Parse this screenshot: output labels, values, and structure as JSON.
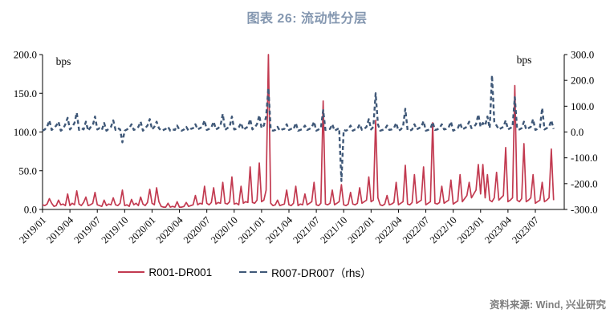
{
  "title": "图表 26: 流动性分层",
  "source": "资料来源: Wind, 兴业研究",
  "colors": {
    "title": "#8497B0",
    "r001_line": "#C23A50",
    "r007_line": "#3F5878",
    "axis": "#000000",
    "source_text": "#7F7F7F"
  },
  "legend": {
    "items": [
      {
        "label": "R001-DR001",
        "style": "solid"
      },
      {
        "label": "R007-DR007（rhs）",
        "style": "dashed"
      }
    ]
  },
  "chart_data": {
    "type": "line",
    "title": "图表 26: 流动性分层",
    "unit_label_left": "bps",
    "unit_label_right": "bps",
    "grid": false,
    "legend_position": "bottom",
    "x_start_month": "2019-01",
    "x_end_month": "2023-09",
    "points_per_month": 4,
    "x_tick_labels": [
      "2019/01",
      "2019/04",
      "2019/07",
      "2019/10",
      "2020/01",
      "2020/04",
      "2020/07",
      "2020/10",
      "2021/01",
      "2021/04",
      "2021/07",
      "2021/10",
      "2022/01",
      "2022/04",
      "2022/07",
      "2022/10",
      "2023/01",
      "2023/04",
      "2023/07"
    ],
    "left_axis": {
      "min": 0,
      "max": 200,
      "tick_labels": [
        "0.0",
        "50.0",
        "100.0",
        "150.0",
        "200.0"
      ],
      "tick_values": [
        0,
        50,
        100,
        150,
        200
      ]
    },
    "right_axis": {
      "min": -300,
      "max": 300,
      "tick_labels": [
        "-300.0",
        "-200.0",
        "-100.0",
        "0.0",
        "100.0",
        "200.0",
        "300.0"
      ],
      "tick_values": [
        -300,
        -200,
        -100,
        0,
        100,
        200,
        300
      ]
    },
    "series": [
      {
        "name": "R001-DR001",
        "axis": "left",
        "line": "solid",
        "color_key": "r001_line",
        "values": [
          6,
          5,
          7,
          14,
          8,
          4,
          5,
          12,
          6,
          7,
          5,
          20,
          5,
          8,
          6,
          24,
          7,
          5,
          9,
          16,
          5,
          6,
          8,
          22,
          6,
          5,
          4,
          12,
          5,
          7,
          6,
          15,
          6,
          5,
          8,
          25,
          5,
          6,
          4,
          13,
          6,
          8,
          5,
          16,
          7,
          5,
          9,
          26,
          8,
          6,
          28,
          10,
          4,
          3,
          3,
          8,
          3,
          4,
          3,
          10,
          3,
          3,
          4,
          9,
          4,
          5,
          6,
          18,
          6,
          8,
          7,
          30,
          8,
          6,
          9,
          28,
          7,
          9,
          8,
          35,
          8,
          7,
          10,
          42,
          7,
          8,
          6,
          30,
          8,
          10,
          9,
          55,
          9,
          8,
          12,
          60,
          10,
          12,
          25,
          200,
          8,
          5,
          6,
          12,
          5,
          6,
          7,
          25,
          6,
          5,
          8,
          30,
          5,
          7,
          6,
          20,
          6,
          8,
          10,
          35,
          6,
          5,
          8,
          140,
          7,
          6,
          8,
          25,
          6,
          8,
          10,
          32,
          6,
          5,
          7,
          22,
          7,
          6,
          8,
          28,
          8,
          10,
          12,
          42,
          10,
          12,
          115,
          15,
          6,
          5,
          7,
          18,
          6,
          7,
          9,
          35,
          6,
          8,
          10,
          57,
          7,
          6,
          9,
          45,
          8,
          10,
          12,
          55,
          6,
          8,
          10,
          112,
          8,
          7,
          9,
          30,
          8,
          10,
          12,
          38,
          7,
          9,
          11,
          45,
          10,
          14,
          18,
          35,
          15,
          20,
          25,
          58,
          20,
          58,
          15,
          45,
          12,
          10,
          15,
          48,
          12,
          15,
          18,
          80,
          10,
          12,
          15,
          160,
          12,
          10,
          14,
          85,
          10,
          12,
          15,
          45,
          8,
          10,
          12,
          35,
          10,
          12,
          15,
          78,
          12
        ]
      },
      {
        "name": "R007-DR007（rhs）",
        "axis": "right",
        "line": "dashed",
        "color_key": "r007_line",
        "values": [
          5,
          10,
          20,
          45,
          8,
          15,
          25,
          40,
          5,
          12,
          30,
          55,
          10,
          20,
          35,
          75,
          8,
          15,
          10,
          40,
          5,
          18,
          25,
          60,
          10,
          15,
          8,
          35,
          5,
          12,
          20,
          45,
          8,
          15,
          10,
          -40,
          5,
          10,
          15,
          30,
          8,
          12,
          20,
          40,
          5,
          15,
          25,
          50,
          10,
          20,
          40,
          15,
          5,
          8,
          12,
          20,
          5,
          10,
          8,
          25,
          8,
          5,
          10,
          20,
          5,
          12,
          15,
          30,
          10,
          15,
          20,
          45,
          8,
          12,
          18,
          40,
          10,
          15,
          25,
          70,
          8,
          15,
          20,
          60,
          10,
          12,
          18,
          35,
          8,
          15,
          20,
          50,
          10,
          18,
          30,
          65,
          15,
          25,
          60,
          170,
          10,
          5,
          8,
          20,
          5,
          10,
          12,
          30,
          8,
          12,
          10,
          35,
          5,
          8,
          12,
          25,
          8,
          12,
          18,
          40,
          5,
          10,
          15,
          85,
          8,
          10,
          12,
          30,
          5,
          10,
          15,
          -190,
          8,
          5,
          10,
          25,
          5,
          10,
          12,
          30,
          8,
          12,
          20,
          50,
          10,
          20,
          150,
          30,
          5,
          8,
          10,
          25,
          8,
          10,
          15,
          35,
          5,
          10,
          20,
          90,
          8,
          5,
          10,
          30,
          10,
          15,
          20,
          42,
          5,
          8,
          12,
          38,
          8,
          10,
          15,
          30,
          10,
          12,
          18,
          40,
          5,
          10,
          15,
          35,
          10,
          15,
          20,
          40,
          15,
          20,
          30,
          68,
          20,
          35,
          25,
          60,
          15,
          220,
          40,
          25,
          10,
          15,
          20,
          45,
          10,
          15,
          20,
          135,
          12,
          10,
          15,
          40,
          10,
          15,
          20,
          50,
          8,
          12,
          18,
          93,
          10,
          15,
          20,
          45,
          12
        ]
      }
    ]
  }
}
